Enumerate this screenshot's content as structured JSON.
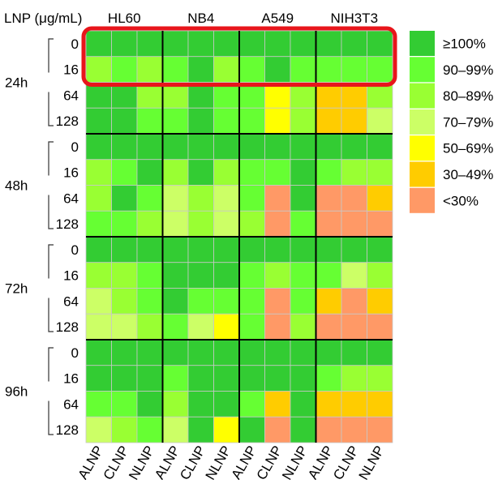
{
  "chart_data": {
    "type": "heatmap",
    "title": "",
    "corner_label": "LNP (μg/mL)",
    "cell_lines": [
      "HL60",
      "NB4",
      "A549",
      "NIH3T3"
    ],
    "formulations": [
      "ALNP",
      "CLNP",
      "NLNP"
    ],
    "timepoints": [
      "24h",
      "48h",
      "72h",
      "96h"
    ],
    "doses": [
      "0",
      "16",
      "64",
      "128"
    ],
    "legend": [
      {
        "label": "≥100%",
        "color": "#33cc33"
      },
      {
        "label": "90–99%",
        "color": "#66ff33"
      },
      {
        "label": "80–89%",
        "color": "#99ff33"
      },
      {
        "label": "70–79%",
        "color": "#ccff66"
      },
      {
        "label": "50–69%",
        "color": "#ffff00"
      },
      {
        "label": "30–49%",
        "color": "#ffcc00"
      },
      {
        "label": "<30%",
        "color": "#ff9966"
      }
    ],
    "highlight": {
      "timepoint": "24h",
      "doses": [
        "0",
        "16"
      ],
      "color": "#e8151b"
    },
    "grid_divider_color": "#000000",
    "cell_border_color": "#c8c8c8",
    "rows": [
      {
        "timepoint": "24h",
        "dose": "0",
        "categories": [
          0,
          0,
          0,
          0,
          0,
          0,
          0,
          0,
          0,
          0,
          0,
          0
        ]
      },
      {
        "timepoint": "24h",
        "dose": "16",
        "categories": [
          2,
          1,
          2,
          1,
          0,
          2,
          1,
          0,
          1,
          1,
          1,
          1
        ]
      },
      {
        "timepoint": "24h",
        "dose": "64",
        "categories": [
          0,
          0,
          2,
          2,
          0,
          1,
          1,
          4,
          2,
          5,
          5,
          2
        ]
      },
      {
        "timepoint": "24h",
        "dose": "128",
        "categories": [
          0,
          0,
          1,
          1,
          0,
          1,
          1,
          4,
          2,
          5,
          5,
          3
        ]
      },
      {
        "timepoint": "48h",
        "dose": "0",
        "categories": [
          0,
          0,
          0,
          0,
          0,
          0,
          0,
          0,
          0,
          0,
          0,
          0
        ]
      },
      {
        "timepoint": "48h",
        "dose": "16",
        "categories": [
          2,
          1,
          0,
          2,
          0,
          2,
          1,
          1,
          0,
          1,
          2,
          2
        ]
      },
      {
        "timepoint": "48h",
        "dose": "64",
        "categories": [
          2,
          0,
          1,
          3,
          2,
          3,
          1,
          6,
          0,
          6,
          6,
          5
        ]
      },
      {
        "timepoint": "48h",
        "dose": "128",
        "categories": [
          1,
          1,
          2,
          3,
          2,
          3,
          2,
          6,
          1,
          6,
          6,
          6
        ]
      },
      {
        "timepoint": "72h",
        "dose": "0",
        "categories": [
          0,
          0,
          0,
          0,
          0,
          0,
          0,
          0,
          0,
          0,
          0,
          0
        ]
      },
      {
        "timepoint": "72h",
        "dose": "16",
        "categories": [
          2,
          2,
          1,
          0,
          0,
          0,
          1,
          2,
          1,
          1,
          3,
          2
        ]
      },
      {
        "timepoint": "72h",
        "dose": "64",
        "categories": [
          3,
          2,
          1,
          0,
          1,
          1,
          1,
          6,
          1,
          5,
          6,
          5
        ]
      },
      {
        "timepoint": "72h",
        "dose": "128",
        "categories": [
          3,
          3,
          2,
          1,
          3,
          4,
          1,
          6,
          2,
          6,
          6,
          6
        ]
      },
      {
        "timepoint": "96h",
        "dose": "0",
        "categories": [
          0,
          0,
          0,
          0,
          0,
          0,
          0,
          0,
          0,
          0,
          0,
          0
        ]
      },
      {
        "timepoint": "96h",
        "dose": "16",
        "categories": [
          0,
          0,
          0,
          1,
          0,
          0,
          0,
          0,
          0,
          1,
          2,
          2
        ]
      },
      {
        "timepoint": "96h",
        "dose": "64",
        "categories": [
          1,
          1,
          0,
          2,
          0,
          0,
          1,
          5,
          0,
          5,
          5,
          5
        ]
      },
      {
        "timepoint": "96h",
        "dose": "128",
        "categories": [
          3,
          2,
          1,
          3,
          0,
          4,
          0,
          6,
          0,
          6,
          6,
          6
        ]
      }
    ]
  }
}
